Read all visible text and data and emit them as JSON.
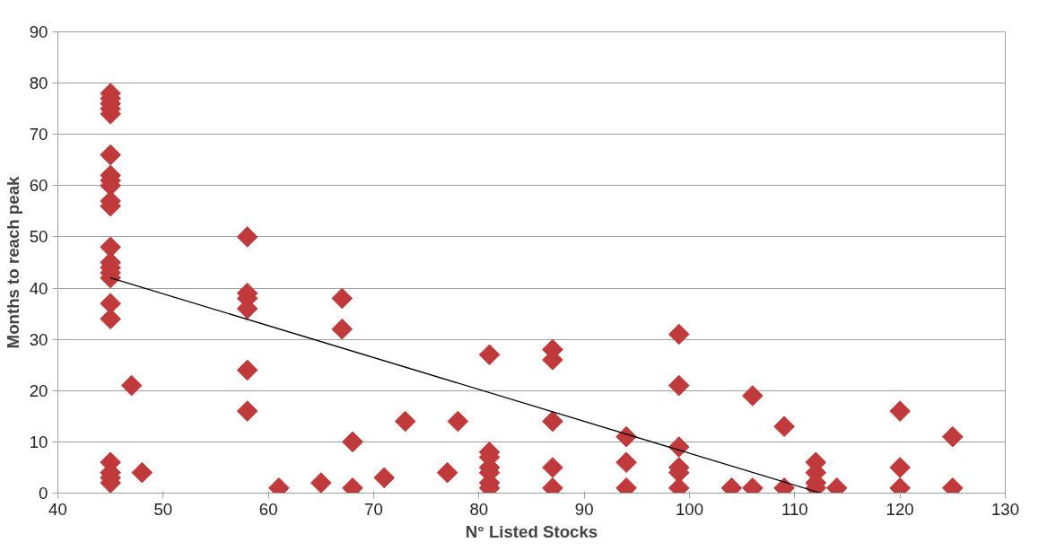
{
  "chart_data": {
    "type": "scatter",
    "xlabel": "N° Listed Stocks",
    "ylabel": "Months to reach peak",
    "xlim": [
      40,
      130
    ],
    "xticks": [
      40,
      50,
      60,
      70,
      80,
      90,
      100,
      110,
      120,
      130
    ],
    "ylim": [
      0,
      90
    ],
    "yticks": [
      0,
      10,
      20,
      30,
      40,
      50,
      60,
      70,
      80,
      90
    ],
    "grid": "y",
    "series": [
      {
        "color": "#c0393b",
        "marker": "diamond",
        "x": [
          45,
          45,
          45,
          45,
          45,
          45,
          45,
          45,
          45,
          45,
          45,
          45,
          45,
          45,
          45,
          45,
          45,
          45,
          45,
          45,
          45,
          45,
          47,
          48,
          58,
          58,
          58,
          58,
          58,
          58,
          61,
          65,
          67,
          67,
          68,
          68,
          71,
          73,
          77,
          78,
          81,
          81,
          81,
          81,
          81,
          81,
          81,
          87,
          87,
          87,
          87,
          87,
          94,
          94,
          94,
          99,
          99,
          99,
          99,
          99,
          99,
          104,
          106,
          106,
          109,
          109,
          112,
          112,
          112,
          112,
          114,
          120,
          120,
          120,
          125,
          125
        ],
        "values": [
          78,
          77,
          76,
          75,
          74,
          66,
          62,
          61,
          60,
          57,
          56,
          48,
          45,
          44,
          43,
          42,
          37,
          34,
          6,
          4,
          3,
          2,
          21,
          4,
          50,
          39,
          38,
          36,
          24,
          16,
          1,
          2,
          38,
          32,
          10,
          1,
          3,
          14,
          4,
          14,
          27,
          8,
          7,
          5,
          4,
          2,
          1,
          28,
          26,
          14,
          5,
          1,
          11,
          6,
          1,
          31,
          21,
          9,
          5,
          4,
          1,
          1,
          19,
          1,
          13,
          1,
          6,
          4,
          2,
          1,
          1,
          16,
          5,
          1,
          11,
          1
        ]
      },
      {
        "type": "line",
        "color": "#000000",
        "marker": "none",
        "line_style": "solid",
        "x": [
          45,
          112.5
        ],
        "values": [
          42,
          0
        ]
      }
    ]
  }
}
